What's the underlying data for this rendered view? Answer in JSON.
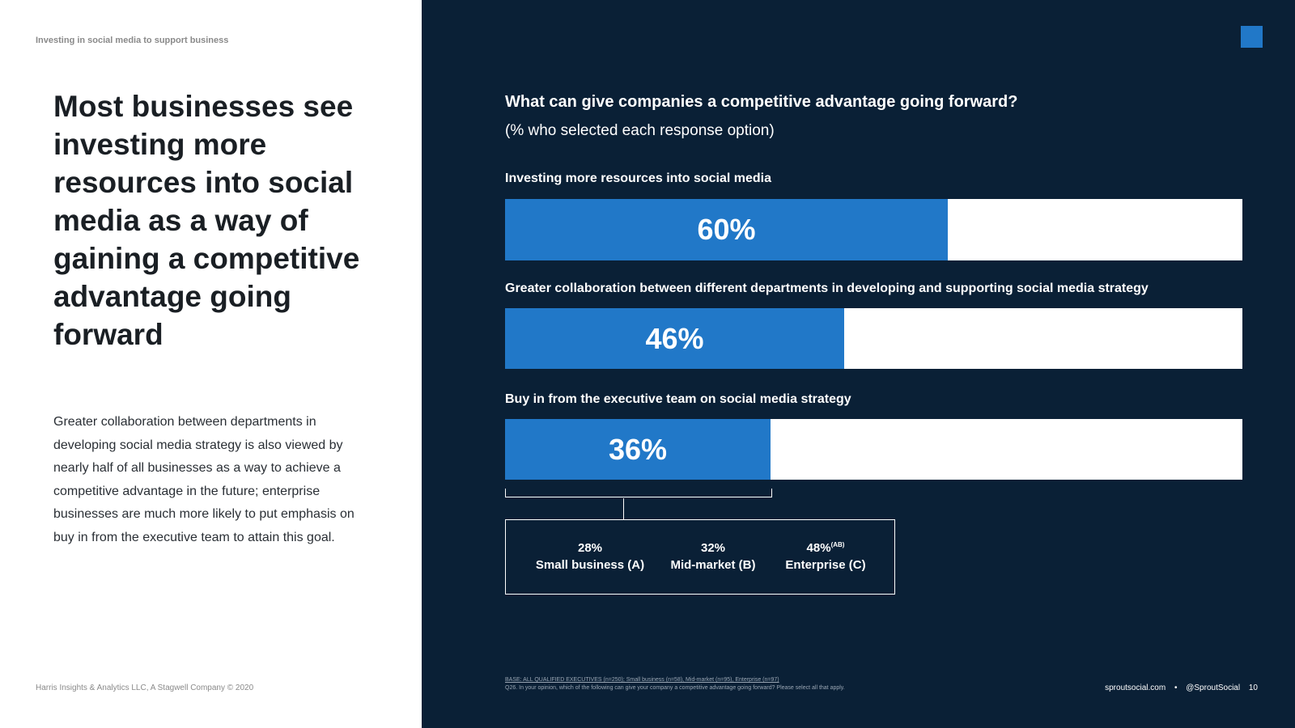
{
  "left": {
    "kicker": "Investing in social media to support business",
    "headline": "Most businesses see investing more resources into social media as a way of gaining a competitive advantage going forward",
    "body": "Greater collaboration between departments in developing social media strategy is also viewed by nearly half of all businesses as a way to achieve a competitive advantage in the future; enterprise businesses are much more likely to put emphasis on buy in from the executive team to attain this goal.",
    "copyright": "Harris Insights & Analytics LLC, A Stagwell Company © 2020"
  },
  "colors": {
    "panel": "#0a2036",
    "accent": "#2178c8",
    "track": "#ffffff"
  },
  "chart_data": {
    "type": "bar",
    "orientation": "horizontal",
    "title": "What can give companies a competitive advantage going forward?",
    "subtitle": "(% who selected each response option)",
    "unit": "%",
    "xlim": [
      0,
      100
    ],
    "categories": [
      "Investing more resources into social media",
      "Greater collaboration between different departments in developing and supporting social media strategy",
      "Buy in from the executive team on social media strategy"
    ],
    "values": [
      60,
      46,
      36
    ],
    "value_labels": [
      "60%",
      "46%",
      "36%"
    ],
    "breakdown": {
      "for_category": "Buy in from the executive team on social media strategy",
      "segments": [
        {
          "value": 28,
          "value_label": "28%",
          "superscript": "",
          "name": "Small business (A)"
        },
        {
          "value": 32,
          "value_label": "32%",
          "superscript": "",
          "name": "Mid-market (B)"
        },
        {
          "value": 48,
          "value_label": "48%",
          "superscript": "(AB)",
          "name": "Enterprise (C)"
        }
      ]
    }
  },
  "footer": {
    "base": "BASE: ALL QUALIFIED EXECUTIVES (n=250); Small business (n=58), Mid-market (n=95), Enterprise (n=97)",
    "question": "Q26. In your opinion, which of the following can give your company a competitive advantage going forward? Please select all that apply.",
    "site": "sproutsocial.com",
    "separator": "•",
    "handle": "@SproutSocial",
    "page": "10"
  }
}
